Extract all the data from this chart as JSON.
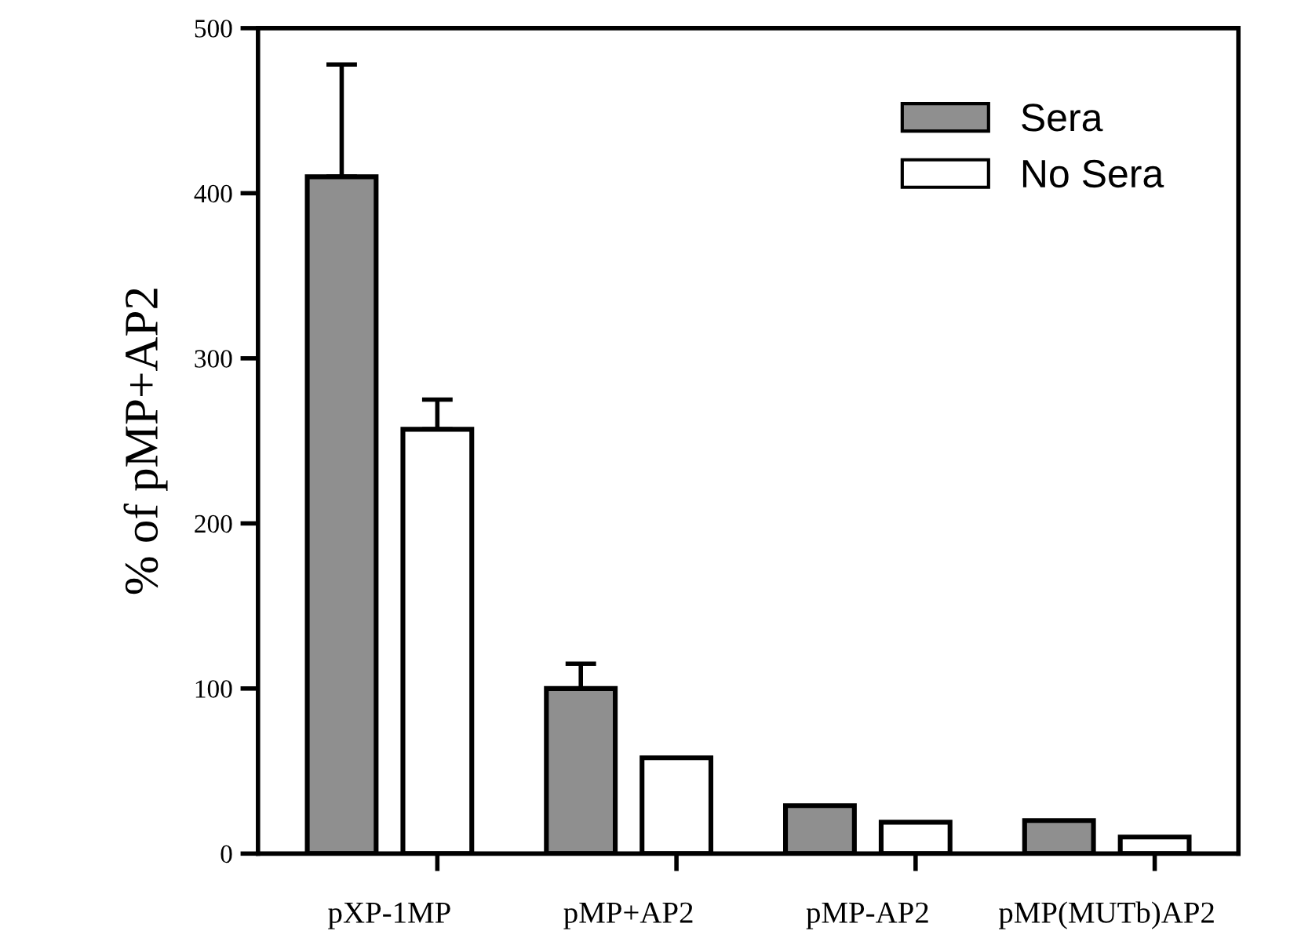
{
  "chart_data": {
    "type": "bar",
    "ylabel": "% of pMP+AP2",
    "categories": [
      "pXP-1MP",
      "pMP+AP2",
      "pMP-AP2",
      "pMP(MUTb)AP2"
    ],
    "series": [
      {
        "name": "Sera",
        "color": "#8f8f8f",
        "values": [
          410,
          100,
          29,
          20
        ],
        "errors": [
          [
            410,
            478
          ],
          [
            100,
            115
          ],
          null,
          null
        ]
      },
      {
        "name": "No Sera",
        "color": "#ffffff",
        "values": [
          257,
          58,
          19,
          10
        ],
        "errors": [
          [
            257,
            275
          ],
          null,
          null,
          null
        ]
      }
    ],
    "ylim": [
      0,
      500
    ],
    "yticks": [
      0,
      100,
      200,
      300,
      400,
      500
    ],
    "grid": false,
    "legend": "top right"
  }
}
